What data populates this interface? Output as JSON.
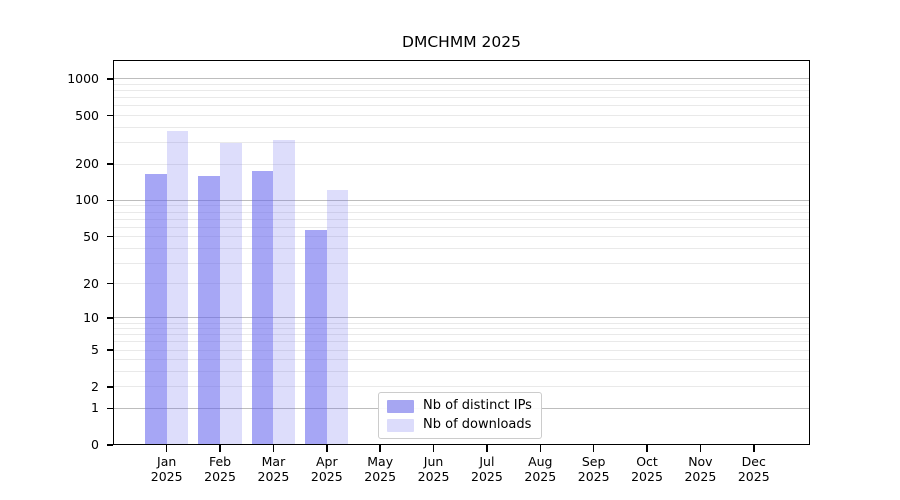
{
  "chart_data": {
    "type": "bar",
    "title": "DMCHMM 2025",
    "x": {
      "categories": [
        "Jan",
        "Feb",
        "Mar",
        "Apr",
        "May",
        "Jun",
        "Jul",
        "Aug",
        "Sep",
        "Oct",
        "Nov",
        "Dec"
      ],
      "year": "2025"
    },
    "series": [
      {
        "name": "Nb of distinct IPs",
        "color": "rgba(102,102,238,0.58)",
        "legend_color": "#a6a6f2",
        "values": [
          166,
          160,
          174,
          57,
          0,
          0,
          0,
          0,
          0,
          0,
          0,
          0
        ]
      },
      {
        "name": "Nb of downloads",
        "color": "rgba(102,102,238,0.22)",
        "legend_color": "#dcdcfb",
        "values": [
          376,
          298,
          315,
          122,
          0,
          0,
          0,
          0,
          0,
          0,
          0,
          0
        ]
      }
    ],
    "yscale": "log10(1+y)",
    "ytick_labels": [
      "1000",
      "500",
      "200",
      "100",
      "50",
      "20",
      "10",
      "5",
      "2",
      "1",
      "0"
    ],
    "ytick_values": [
      1000,
      500,
      200,
      100,
      50,
      20,
      10,
      5,
      2,
      1,
      0
    ],
    "ylim": [
      0,
      1430
    ],
    "grid": "both",
    "legend_position": "lower center",
    "colors": {
      "grid_major": "#bdbdbd",
      "grid_minor": "#e9e9e9",
      "spine": "#000000",
      "text": "#000000",
      "background": "#ffffff"
    }
  }
}
